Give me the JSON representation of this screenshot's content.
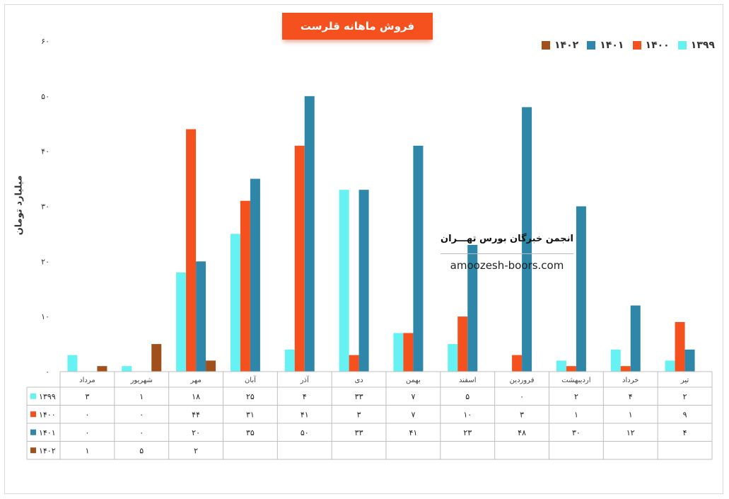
{
  "chart_data": {
    "type": "bar",
    "title": "فروش ماهانه قلرست",
    "ylabel": "میلیارد تومان",
    "ylim": [
      0,
      60
    ],
    "yticks": [
      "۰",
      "۱۰",
      "۲۰",
      "۳۰",
      "۴۰",
      "۵۰",
      "۶۰"
    ],
    "categories": [
      "مرداد",
      "شهریور",
      "مهر",
      "آبان",
      "آذر",
      "دی",
      "بهمن",
      "اسفند",
      "فروردین",
      "اردیبهشت",
      "خرداد",
      "تیر"
    ],
    "series": [
      {
        "name": "۱۳۹۹",
        "color": "#66f2f2",
        "values": [
          3,
          1,
          18,
          25,
          4,
          33,
          7,
          5,
          0,
          2,
          4,
          2
        ],
        "labels": [
          "۳",
          "۱",
          "۱۸",
          "۲۵",
          "۴",
          "۳۳",
          "۷",
          "۵",
          "۰",
          "۲",
          "۴",
          "۲"
        ]
      },
      {
        "name": "۱۴۰۰",
        "color": "#f4511e",
        "values": [
          0,
          0,
          44,
          31,
          41,
          3,
          7,
          10,
          3,
          1,
          1,
          9
        ],
        "labels": [
          "۰",
          "۰",
          "۴۴",
          "۳۱",
          "۴۱",
          "۳",
          "۷",
          "۱۰",
          "۳",
          "۱",
          "۱",
          "۹"
        ]
      },
      {
        "name": "۱۴۰۱",
        "color": "#2e86a8",
        "values": [
          0,
          0,
          20,
          35,
          50,
          33,
          41,
          23,
          48,
          30,
          12,
          4
        ],
        "labels": [
          "۰",
          "۰",
          "۲۰",
          "۳۵",
          "۵۰",
          "۳۳",
          "۴۱",
          "۲۳",
          "۴۸",
          "۳۰",
          "۱۲",
          "۴"
        ]
      },
      {
        "name": "۱۴۰۲",
        "color": "#a0501a",
        "values": [
          1,
          5,
          2,
          null,
          null,
          null,
          null,
          null,
          null,
          null,
          null,
          null
        ],
        "labels": [
          "۱",
          "۵",
          "۲",
          "",
          "",
          "",
          "",
          "",
          "",
          "",
          "",
          ""
        ]
      }
    ],
    "legend": "top-right",
    "grid": false,
    "data_table": true
  },
  "watermark": {
    "title": "انجمن خبرگان بورس تهـــران",
    "url": "amoozesh-boors.com"
  }
}
